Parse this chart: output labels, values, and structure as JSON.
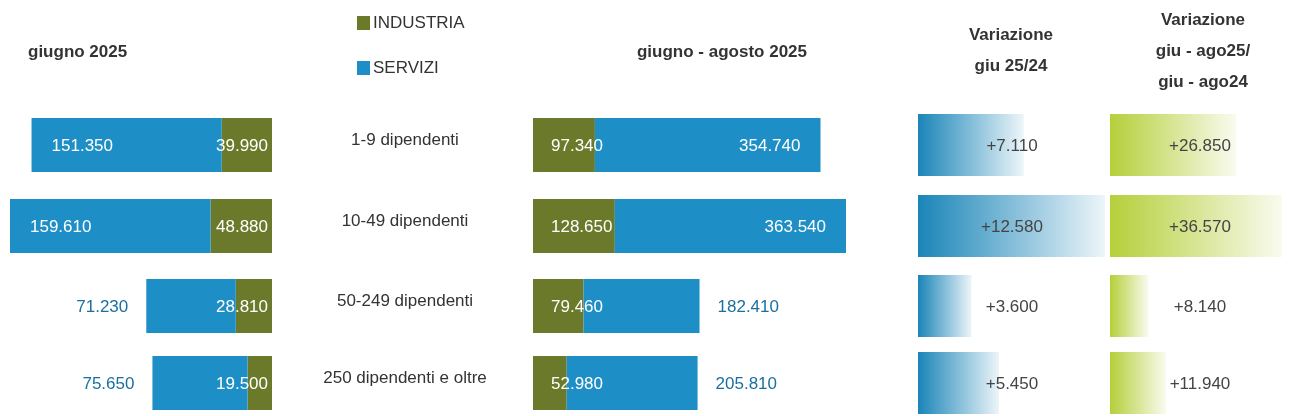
{
  "chart_data": [
    {
      "type": "bar",
      "orientation": "horizontal",
      "stacked": true,
      "title": "giugno 2025",
      "categories": [
        "1-9 dipendenti",
        "10-49 dipendenti",
        "50-249 dipendenti",
        "250 dipendenti e oltre"
      ],
      "legend": "top right",
      "series": [
        {
          "name": "INDUSTRIA",
          "color": "#6b7a2a",
          "values": [
            39990,
            48880,
            28810,
            19500
          ],
          "value_labels": [
            "39.990",
            "48.880",
            "28.810",
            "19.500"
          ]
        },
        {
          "name": "SERVIZI",
          "color": "#1e8fc6",
          "values": [
            151350,
            159610,
            71230,
            75650
          ],
          "value_labels": [
            "151.350",
            "159.610",
            "71.230",
            "75.650"
          ]
        }
      ]
    },
    {
      "type": "bar",
      "orientation": "horizontal",
      "stacked": true,
      "title": "giugno  - agosto 2025",
      "categories": [
        null,
        null,
        null,
        null
      ],
      "series": [
        {
          "color": "#6b7a2a",
          "values": [
            97340,
            128650,
            79460,
            52980
          ],
          "value_labels": [
            "97.340",
            "128.650",
            "79.460",
            "52.980"
          ]
        },
        {
          "color": "#1e8fc6",
          "values": [
            354740,
            363540,
            182410,
            205810
          ],
          "value_labels": [
            "354.740",
            "363.540",
            "182.410",
            "205.810"
          ]
        }
      ]
    },
    {
      "type": "bar",
      "orientation": "horizontal",
      "title": "Variazione\ngiu 25/24",
      "categories": [
        null,
        null,
        null,
        null
      ],
      "color": "#1a85b8",
      "values": [
        7110,
        12580,
        3600,
        5450
      ],
      "value_labels": [
        "+7.110",
        "+12.580",
        "+3.600",
        "+5.450"
      ]
    },
    {
      "type": "bar",
      "orientation": "horizontal",
      "title": "Variazione\ngiu - ago25/\ngiu - ago24",
      "categories": [
        null,
        null,
        null,
        null
      ],
      "color": "#b5cf3a",
      "values": [
        26850,
        36570,
        8140,
        11940
      ],
      "value_labels": [
        "+26.850",
        "+36.570",
        "+8.140",
        "+11.940"
      ]
    }
  ]
}
